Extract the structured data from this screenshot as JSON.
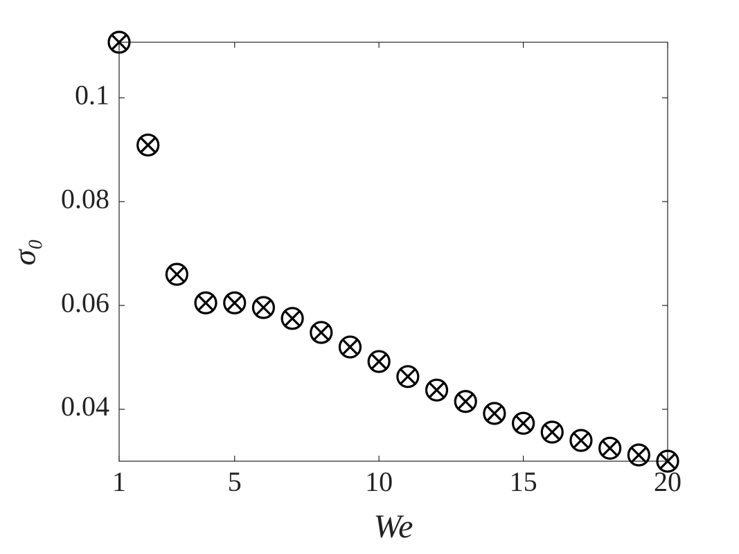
{
  "chart_data": {
    "type": "scatter",
    "x_label": "We",
    "y_label": "σ₀",
    "x": [
      1,
      2,
      3,
      4,
      5,
      6,
      7,
      8,
      9,
      10,
      11,
      12,
      13,
      14,
      15,
      16,
      17,
      18,
      19,
      20
    ],
    "values": [
      0.1107,
      0.0909,
      0.066,
      0.0605,
      0.0605,
      0.0596,
      0.0575,
      0.0548,
      0.052,
      0.0492,
      0.0463,
      0.0437,
      0.0415,
      0.0392,
      0.0373,
      0.0356,
      0.034,
      0.0325,
      0.0312,
      0.03
    ],
    "color": "#000000",
    "xlim": [
      1,
      20
    ],
    "xticks": [
      1,
      5,
      10,
      15,
      20
    ],
    "ylim": [
      0.03,
      0.1107
    ],
    "yticks": [
      0.04,
      0.06,
      0.08,
      0.1
    ],
    "grid": false
  }
}
